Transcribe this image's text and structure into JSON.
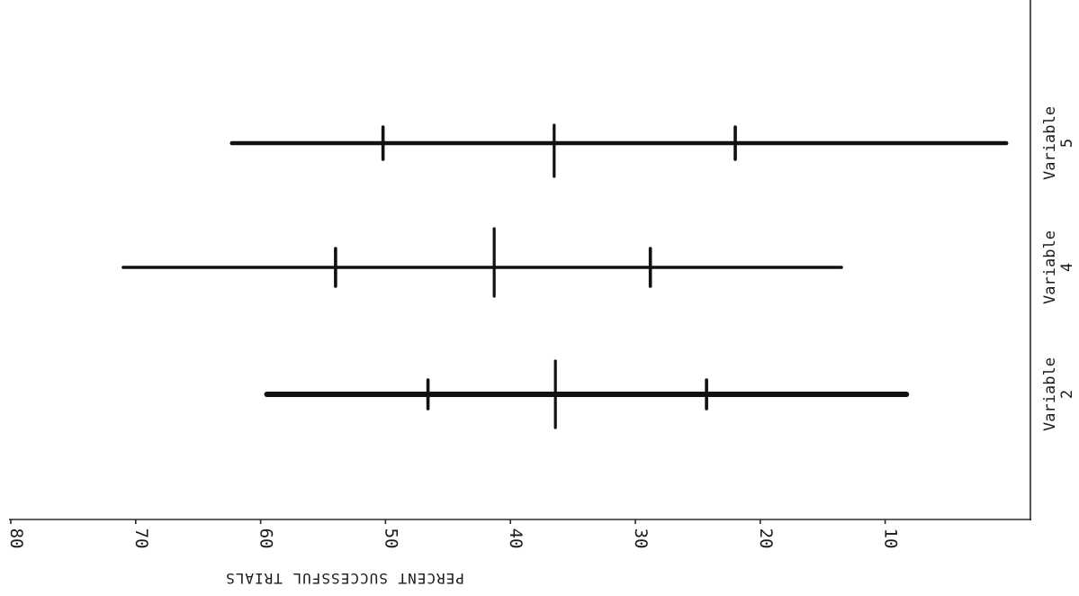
{
  "chart_data": {
    "type": "range",
    "orientation": "rotated",
    "value_axis": {
      "label": "PERCENT SUCCESSFUL TRIALS",
      "ticks": [
        80,
        70,
        60,
        50,
        40,
        30,
        20,
        10
      ],
      "range": [
        80,
        0
      ]
    },
    "rows": [
      {
        "label_line1": "Variable",
        "label_line2": "5",
        "range": [
          62.3,
          0.3
        ],
        "markers": [
          50.2,
          36.5,
          22.0
        ]
      },
      {
        "label_line1": "Variable",
        "label_line2": "4",
        "range": [
          71.0,
          13.5
        ],
        "markers": [
          54.0,
          41.3,
          28.8
        ]
      },
      {
        "label_line1": "Variable",
        "label_line2": "2",
        "range": [
          59.5,
          8.3
        ],
        "markers": [
          46.6,
          36.4,
          24.3
        ]
      }
    ],
    "grid": false,
    "legend": "none",
    "color": "#111111"
  }
}
